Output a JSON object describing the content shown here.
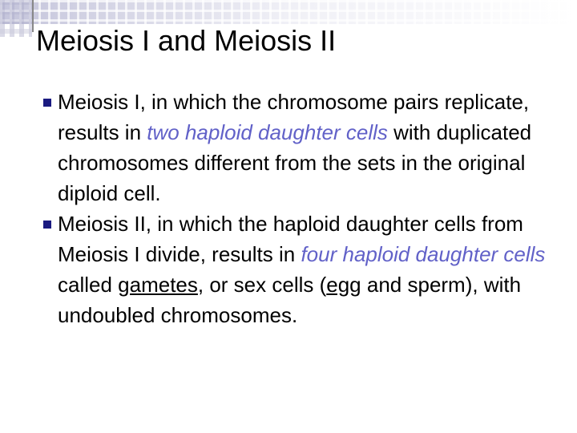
{
  "title": "Meiosis I and Meiosis II",
  "bullets": [
    [
      "Meiosis I, in which the chromosome pairs replicate, results in ",
      "two haploid daughter cells",
      " with duplicated chromosomes different from the sets in the original diploid cell."
    ],
    [
      "Meiosis II, in which the haploid daughter cells from Meiosis I divide, results in ",
      "four haploid daughter cells",
      " called ",
      "gametes",
      ", or sex cells (",
      "egg",
      " and sperm), with undoubled chromosomes."
    ]
  ]
}
